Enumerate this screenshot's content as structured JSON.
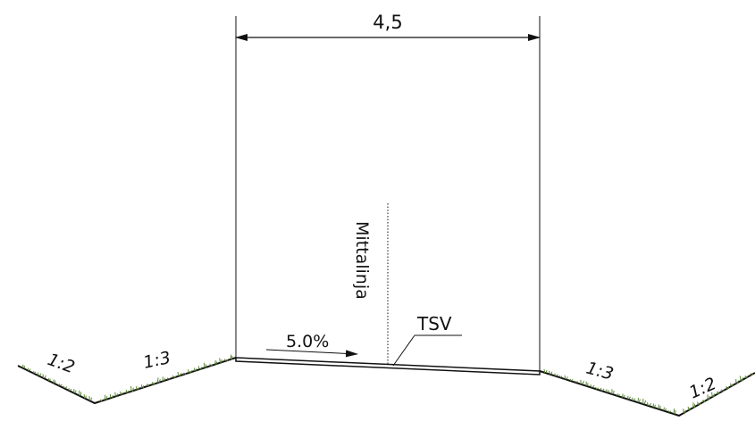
{
  "dimension": {
    "width_label": "4,5"
  },
  "labels": {
    "centerline": "Mittalinja",
    "tsv": "TSV",
    "crossfall": "5.0%",
    "slope_left_outer": "1:2",
    "slope_left_inner": "1:3",
    "slope_right_inner": "1:3",
    "slope_right_outer": "1:2"
  },
  "colors": {
    "line": "#111111",
    "grass": "#5e8a3a"
  }
}
